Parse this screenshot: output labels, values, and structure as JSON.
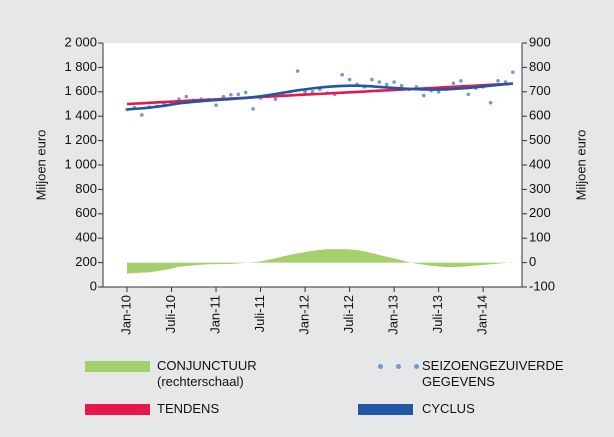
{
  "chart_data": {
    "type": "line",
    "y_label": "Miljoen euro",
    "y2_label": "Miljoen euro",
    "categories": [
      "Jan-10",
      null,
      null,
      null,
      null,
      null,
      "Juli-10",
      null,
      null,
      null,
      null,
      null,
      "Jan-11",
      null,
      null,
      null,
      null,
      null,
      "Juli-11",
      null,
      null,
      null,
      null,
      null,
      "Jan-12",
      null,
      null,
      null,
      null,
      null,
      "Juli-12",
      null,
      null,
      null,
      null,
      null,
      "Jan-13",
      null,
      null,
      null,
      null,
      null,
      "Juli-13",
      null,
      null,
      null,
      null,
      null,
      "Jan-14",
      null,
      null,
      null,
      null
    ],
    "ylim": [
      0,
      2000
    ],
    "yticks": [
      0,
      200,
      400,
      600,
      800,
      {
        "value": 1000,
        "label": "1 000"
      },
      {
        "value": 1200,
        "label": "1 200"
      },
      {
        "value": 1400,
        "label": "1 400"
      },
      {
        "value": 1600,
        "label": "1 600"
      },
      {
        "value": 1800,
        "label": "1 800"
      },
      {
        "value": 2000,
        "label": "2 000"
      }
    ],
    "y2lim": [
      -100,
      900
    ],
    "y2ticks": [
      -100,
      0,
      100,
      200,
      300,
      400,
      500,
      600,
      700,
      800,
      900
    ],
    "grid": false,
    "legend": "bottom",
    "series": [
      {
        "name": "CONJUNCTUUR (rechterschaal)",
        "type": "area",
        "axis": "y2",
        "color": "#a3d06c",
        "values": [
          -45,
          -43,
          -41,
          -40,
          -35,
          -31,
          -24,
          -17,
          -14,
          -11,
          -9,
          -7,
          -6,
          -6,
          -5,
          -3,
          -1,
          2,
          5,
          11,
          18,
          25,
          32,
          38,
          43,
          48,
          52,
          55,
          55,
          55,
          54,
          51,
          46,
          39,
          31,
          24,
          17,
          10,
          2,
          -4,
          -9,
          -13,
          -16,
          -18,
          -18,
          -17,
          -15,
          -12,
          -10,
          -7,
          -4,
          -1,
          2
        ]
      },
      {
        "name": "SEIZOENGEZUIVERDE GEGEVENS",
        "type": "scatter",
        "color": "#6f9ad3",
        "values": [
          1455,
          1470,
          1410,
          1475,
          1480,
          1500,
          1505,
          1540,
          1560,
          1530,
          1540,
          1535,
          1490,
          1560,
          1575,
          1580,
          1595,
          1460,
          1550,
          1560,
          1540,
          1590,
          1600,
          1770,
          1600,
          1600,
          1620,
          1590,
          1580,
          1740,
          1700,
          1660,
          1640,
          1700,
          1680,
          1660,
          1680,
          1650,
          1620,
          1640,
          1570,
          1610,
          1600,
          1620,
          1670,
          1690,
          1580,
          1630,
          1640,
          1510,
          1690,
          1680,
          1760
        ]
      },
      {
        "name": "TENDENS",
        "type": "line",
        "color": "#e8174b",
        "values": [
          1500,
          1503,
          1506,
          1510,
          1513,
          1516,
          1519,
          1522,
          1526,
          1529,
          1532,
          1535,
          1538,
          1542,
          1545,
          1548,
          1551,
          1554,
          1558,
          1561,
          1564,
          1567,
          1570,
          1574,
          1577,
          1580,
          1583,
          1586,
          1590,
          1593,
          1596,
          1599,
          1602,
          1606,
          1609,
          1612,
          1615,
          1618,
          1622,
          1625,
          1628,
          1631,
          1634,
          1638,
          1641,
          1644,
          1647,
          1650,
          1654,
          1657,
          1660,
          1663,
          1666
        ]
      },
      {
        "name": "CYCLUS",
        "type": "line",
        "color": "#1f57a4",
        "values": [
          1455,
          1460,
          1465,
          1470,
          1478,
          1485,
          1495,
          1505,
          1512,
          1518,
          1523,
          1528,
          1532,
          1536,
          1540,
          1545,
          1550,
          1556,
          1563,
          1572,
          1582,
          1592,
          1602,
          1612,
          1620,
          1628,
          1635,
          1641,
          1645,
          1648,
          1650,
          1650,
          1648,
          1645,
          1640,
          1636,
          1632,
          1628,
          1624,
          1621,
          1619,
          1618,
          1618,
          1620,
          1623,
          1627,
          1632,
          1638,
          1644,
          1650,
          1656,
          1662,
          1668
        ]
      }
    ]
  }
}
